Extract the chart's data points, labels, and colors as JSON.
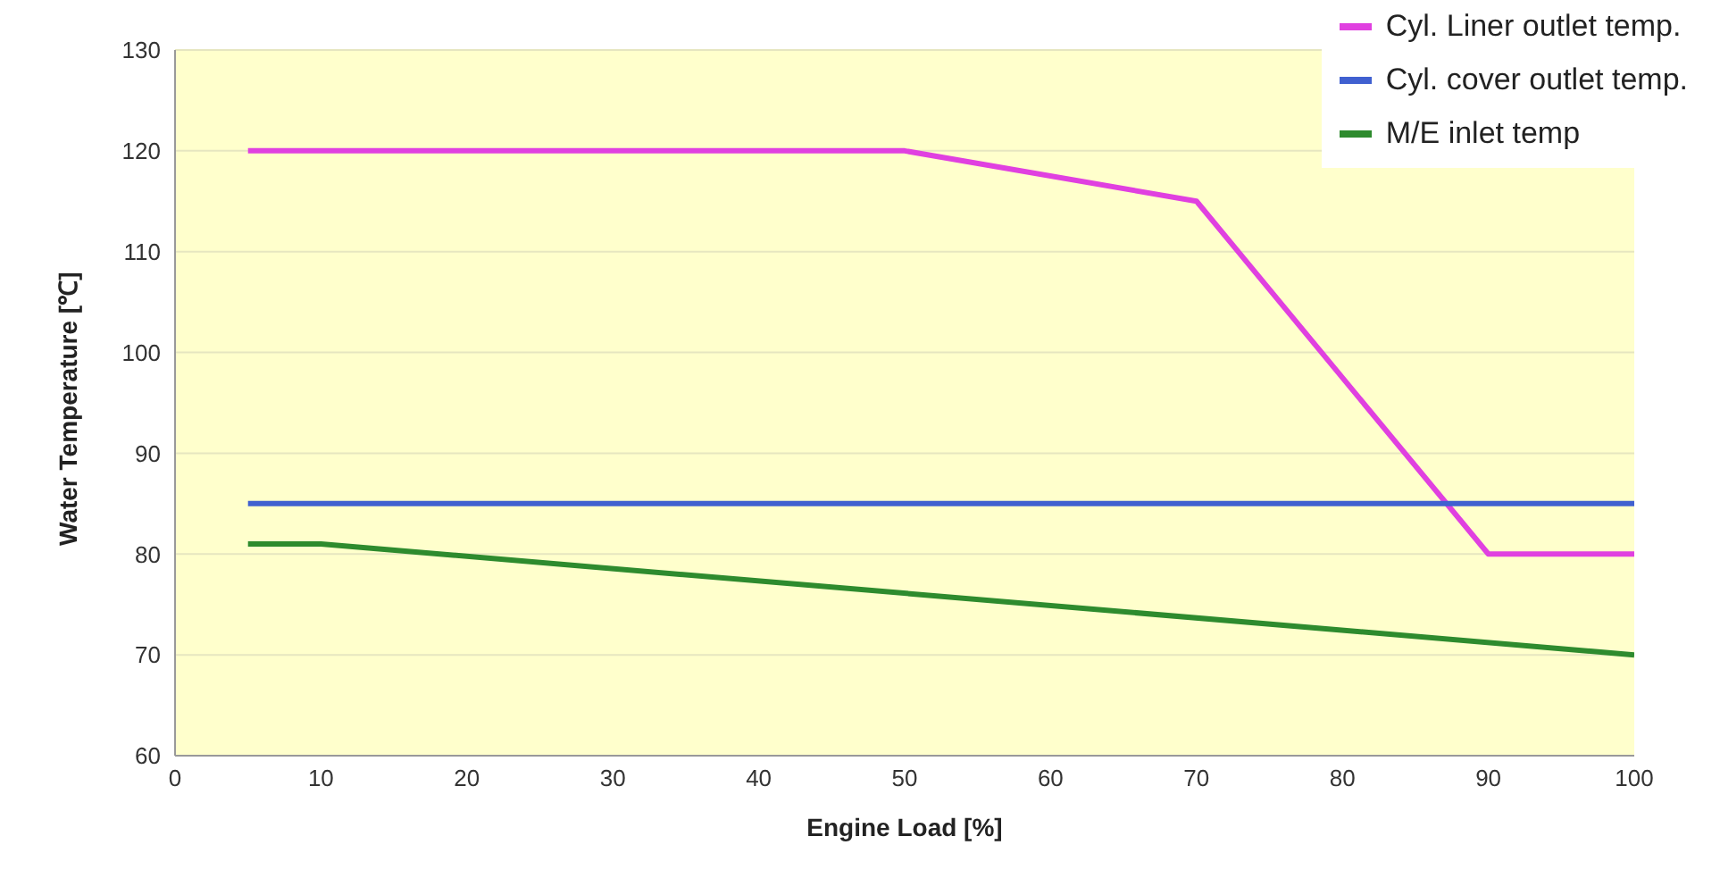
{
  "chart_data": {
    "type": "line",
    "xlabel": "Engine Load [%]",
    "ylabel": "Water Temperature [℃]",
    "xlim": [
      0,
      100
    ],
    "xticks": [
      0,
      10,
      20,
      30,
      40,
      50,
      60,
      70,
      80,
      90,
      100
    ],
    "ylim": [
      60,
      130
    ],
    "yticks": [
      60,
      70,
      80,
      90,
      100,
      110,
      120,
      130
    ],
    "grid": "y",
    "legend": "top right",
    "marker": "none",
    "line_style": "solid",
    "series": [
      {
        "name": "Cyl. Liner outlet temp.",
        "color": "#e040e0",
        "x": [
          5,
          50,
          70,
          90,
          100
        ],
        "values": [
          120,
          120,
          115,
          80,
          80
        ]
      },
      {
        "name": "Cyl. cover outlet temp.",
        "color": "#4060d0",
        "x": [
          5,
          100
        ],
        "values": [
          85,
          85
        ]
      },
      {
        "name": "M/E inlet temp",
        "color": "#2e8b2e",
        "x": [
          5,
          10,
          100
        ],
        "values": [
          81,
          81,
          70
        ]
      }
    ]
  }
}
